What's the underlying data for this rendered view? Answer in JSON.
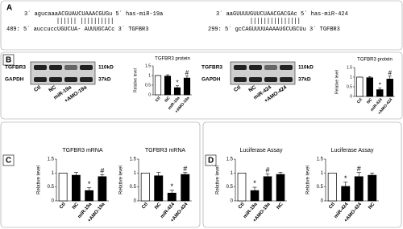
{
  "panel_labels": [
    "A",
    "B",
    "C",
    "D"
  ],
  "sequences": [
    {
      "mirna_line": "3´ agucaaaACGUAUCUAAACGUGu 5´ has-miR-19a",
      "target_line": "489: 5´ auccuccUGUCUA- AUUUGCACc 3´ TGFBR3"
    },
    {
      "mirna_line": "3´ aaGUUUUGUUCUAACGACGAc 5´ has-miR-424",
      "target_line": "299: 5´ gcCAGUUUUAAAAUGCUGCUu 3´ TGFBR3"
    }
  ],
  "blots": [
    {
      "rows": [
        "TGFBR3",
        "GAPDH"
      ],
      "sizes": [
        "110kD",
        "37kD"
      ],
      "lanes": [
        "Ctl",
        "NC",
        "miR-19a",
        "+AMO-19a"
      ]
    },
    {
      "rows": [
        "TGFBR3",
        "GAPDH"
      ],
      "sizes": [
        "110kD",
        "37kD"
      ],
      "lanes": [
        "Ctl",
        "NC",
        "miR-424",
        "+AMO-424"
      ]
    }
  ],
  "chart_data": [
    {
      "type": "bar",
      "title": "TGFBR3 protein",
      "ylabel": "Relative level",
      "categories": [
        "Ctl",
        "NC",
        "miR-19a",
        "+AMO-19a"
      ],
      "values": [
        1.0,
        0.97,
        0.37,
        0.87
      ],
      "errors": [
        0.0,
        0.07,
        0.1,
        0.12
      ],
      "markers": [
        null,
        null,
        "*",
        "#"
      ],
      "colors": [
        "#ffffff",
        "#000000",
        "#000000",
        "#000000"
      ],
      "ylim": [
        0,
        1.5
      ],
      "yticks": [
        0,
        0.5,
        1,
        1.5
      ]
    },
    {
      "type": "bar",
      "title": "TGFBR3 protein",
      "ylabel": "Relative level",
      "categories": [
        "Ctl",
        "NC",
        "miR-424",
        "+AMO-424"
      ],
      "values": [
        1.0,
        0.97,
        0.35,
        0.9
      ],
      "errors": [
        0.0,
        0.06,
        0.08,
        0.15
      ],
      "markers": [
        null,
        null,
        "*",
        "#"
      ],
      "colors": [
        "#ffffff",
        "#000000",
        "#000000",
        "#000000"
      ],
      "ylim": [
        0,
        1.5
      ],
      "yticks": [
        0,
        0.5,
        1,
        1.5
      ]
    },
    {
      "type": "bar",
      "title": "TGFBR3 mRNA",
      "ylabel": "Relative level",
      "categories": [
        "Ctl",
        "NC",
        "miR-19a",
        "+AMO-19a"
      ],
      "values": [
        1.0,
        0.92,
        0.37,
        0.87
      ],
      "errors": [
        0.0,
        0.1,
        0.1,
        0.07
      ],
      "markers": [
        null,
        null,
        "*",
        "#"
      ],
      "colors": [
        "#ffffff",
        "#000000",
        "#000000",
        "#000000"
      ],
      "ylim": [
        0,
        1.5
      ],
      "yticks": [
        0,
        0.5,
        1,
        1.5
      ]
    },
    {
      "type": "bar",
      "title": "TGFBR3 mRNA",
      "ylabel": "Relative level",
      "categories": [
        "Ctl",
        "NC",
        "miR-424",
        "+AMO-424"
      ],
      "values": [
        1.0,
        0.9,
        0.28,
        0.95
      ],
      "errors": [
        0.0,
        0.12,
        0.1,
        0.07
      ],
      "markers": [
        null,
        null,
        "*",
        "#"
      ],
      "colors": [
        "#ffffff",
        "#000000",
        "#000000",
        "#000000"
      ],
      "ylim": [
        0,
        1.5
      ],
      "yticks": [
        0,
        0.5,
        1,
        1.5
      ]
    },
    {
      "type": "bar",
      "title": "Luciferase Assay",
      "ylabel": "Relative level",
      "categories": [
        "Ctl",
        "miR-19a",
        "+AMO-19a",
        "NC"
      ],
      "values": [
        1.0,
        0.37,
        0.87,
        0.95
      ],
      "errors": [
        0.0,
        0.12,
        0.1,
        0.07
      ],
      "markers": [
        null,
        "*",
        "#",
        null
      ],
      "colors": [
        "#ffffff",
        "#000000",
        "#000000",
        "#000000"
      ],
      "ylim": [
        0,
        1.5
      ],
      "yticks": [
        0,
        0.5,
        1,
        1.5
      ]
    },
    {
      "type": "bar",
      "title": "Luciferase Assay",
      "ylabel": "Relative level",
      "categories": [
        "Ctl",
        "miR-424",
        "+AMO-424",
        "NC"
      ],
      "values": [
        1.0,
        0.52,
        0.87,
        0.92
      ],
      "errors": [
        0.0,
        0.15,
        0.15,
        0.08
      ],
      "markers": [
        null,
        "*",
        "#",
        null
      ],
      "colors": [
        "#ffffff",
        "#000000",
        "#000000",
        "#000000"
      ],
      "ylim": [
        0,
        1.5
      ],
      "yticks": [
        0,
        0.5,
        1,
        1.5
      ]
    }
  ]
}
